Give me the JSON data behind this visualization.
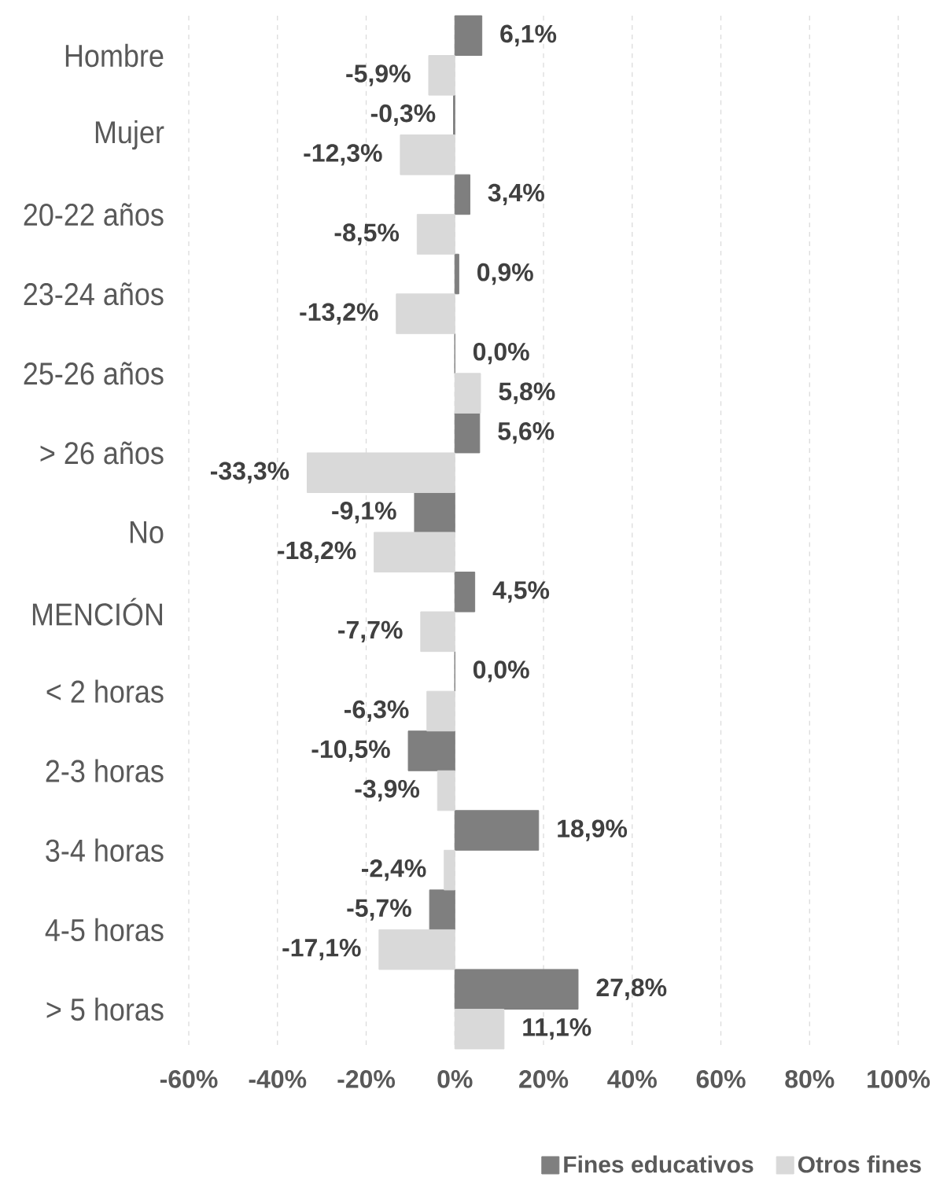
{
  "chart_data": {
    "type": "bar",
    "orientation": "horizontal",
    "categories": [
      "Hombre",
      "Mujer",
      "20-22 años",
      "23-24 años",
      "25-26 años",
      "> 26 años",
      "No",
      "MENCIÓN",
      "< 2 horas",
      "2-3 horas",
      "3-4 horas",
      "4-5 horas",
      "> 5 horas"
    ],
    "series": [
      {
        "name": "Fines educativos",
        "color": "#7f7f7f",
        "values": [
          6.1,
          -0.3,
          3.4,
          0.9,
          0.0,
          5.6,
          -9.1,
          4.5,
          0.0,
          -10.5,
          18.9,
          -5.7,
          27.8
        ],
        "value_labels": [
          "6,1%",
          "-0,3%",
          "3,4%",
          "0,9%",
          "0,0%",
          "5,6%",
          "-9,1%",
          "4,5%",
          "0,0%",
          "-10,5%",
          "18,9%",
          "-5,7%",
          "27,8%"
        ]
      },
      {
        "name": "Otros fines",
        "color": "#d9d9d9",
        "values": [
          -5.9,
          -12.3,
          -8.5,
          -13.2,
          5.8,
          -33.3,
          -18.2,
          -7.7,
          -6.3,
          -3.9,
          -2.4,
          -17.1,
          11.1
        ],
        "value_labels": [
          "-5,9%",
          "-12,3%",
          "-8,5%",
          "-13,2%",
          "5,8%",
          "-33,3%",
          "-18,2%",
          "-7,7%",
          "-6,3%",
          "-3,9%",
          "-2,4%",
          "-17,1%",
          "11,1%"
        ]
      }
    ],
    "xlim": [
      -60,
      100
    ],
    "xticks": [
      {
        "value": -60,
        "label": "-60%"
      },
      {
        "value": -40,
        "label": "-40%"
      },
      {
        "value": -20,
        "label": "-20%"
      },
      {
        "value": 0,
        "label": "0%"
      },
      {
        "value": 20,
        "label": "20%"
      },
      {
        "value": 40,
        "label": "40%"
      },
      {
        "value": 60,
        "label": "60%"
      },
      {
        "value": 80,
        "label": "80%"
      },
      {
        "value": 100,
        "label": "100%"
      }
    ],
    "grid": "x",
    "legend": "bottom"
  }
}
